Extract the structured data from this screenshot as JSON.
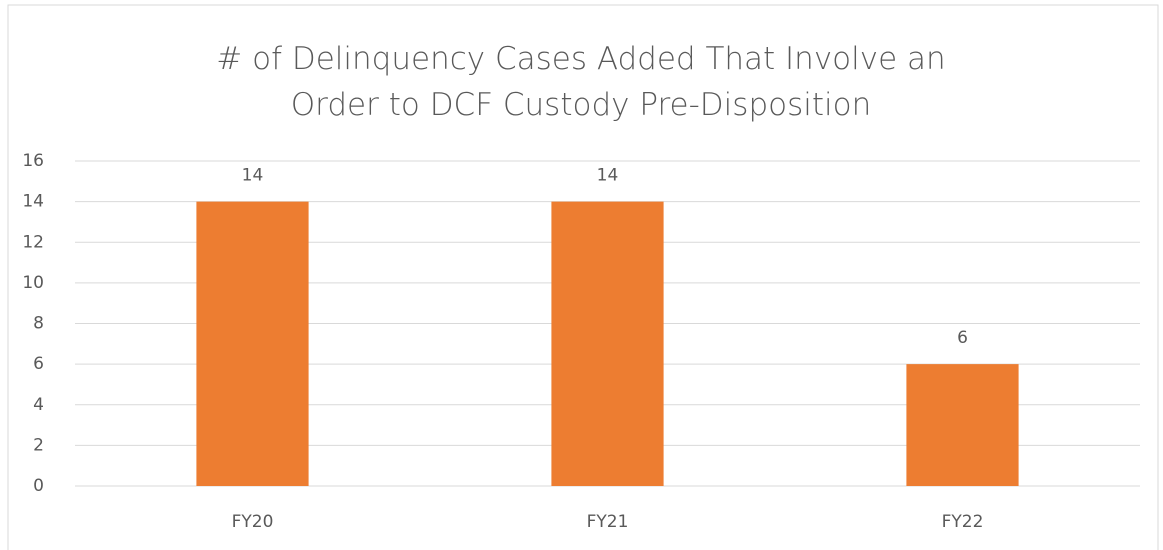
{
  "chart_data": {
    "type": "bar",
    "title": "# of Delinquency Cases Added That Involve an Order to DCF Custody Pre-Disposition",
    "categories": [
      "FY20",
      "FY21",
      "FY22"
    ],
    "values": [
      14,
      14,
      6
    ],
    "color": "#ed7d31",
    "ylim": [
      0,
      16
    ],
    "yticks": [
      0,
      2,
      4,
      6,
      8,
      10,
      12,
      14,
      16
    ],
    "grid": true
  }
}
